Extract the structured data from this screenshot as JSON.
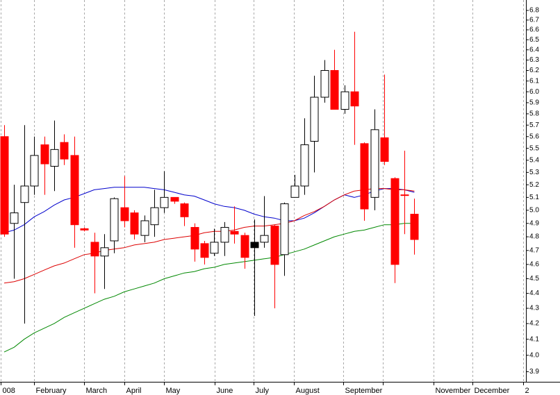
{
  "chart_data": {
    "type": "candlestick",
    "log_scale": true,
    "grid": true,
    "up_color": "#ffffff",
    "down_color": "#ff0000",
    "ylim": [
      3.84,
      6.91
    ],
    "yticks": [
      3.9,
      {
        "value": 4,
        "label": "4.0"
      },
      4.1,
      4.2,
      4.3,
      4.4,
      4.5,
      4.6,
      4.7,
      4.8,
      4.9,
      {
        "value": 5,
        "label": "5.0"
      },
      5.1,
      5.2,
      5.3,
      5.4,
      5.5,
      5.6,
      5.7,
      5.8,
      5.9,
      {
        "value": 6,
        "label": "6.0"
      },
      6.1,
      6.2,
      6.3,
      6.4,
      6.5,
      6.6,
      6.7,
      6.8
    ],
    "xlim": [
      -0.42,
      52.15
    ],
    "xticks": [
      {
        "value": -0.35,
        "label": "008"
      },
      {
        "value": 2.99,
        "label": "February"
      },
      {
        "value": 7.99,
        "label": "March"
      },
      {
        "value": 12.01,
        "label": "April"
      },
      {
        "value": 15.97,
        "label": "May"
      },
      {
        "value": 21.04,
        "label": "June"
      },
      {
        "value": 24.93,
        "label": "July"
      },
      {
        "value": 28.96,
        "label": "August"
      },
      {
        "value": 33.89,
        "label": "September"
      },
      {
        "value": 37.85,
        "label": null
      },
      {
        "value": 42.92,
        "label": "November"
      },
      {
        "value": 46.8,
        "label": "December"
      },
      {
        "value": 51.9,
        "label": "2"
      }
    ],
    "open": [
      5.6,
      4.9,
      5.06,
      5.19,
      5.53,
      5.35,
      5.55,
      5.44,
      4.86,
      4.76,
      4.66,
      4.77,
      5.02,
      4.98,
      4.81,
      4.89,
      5.02,
      5.1,
      5.05,
      4.87,
      4.75,
      4.68,
      4.76,
      4.84,
      4.81,
      4.76,
      4.76,
      4.88,
      4.67,
      5.1,
      5.19,
      5.56,
      5.95,
      6.2,
      5.84,
      6.0,
      5.54,
      5.1,
      5.59,
      5.25,
      5.12,
      4.97
    ],
    "high": [
      5.7,
      5.2,
      5.7,
      5.6,
      5.6,
      5.74,
      5.62,
      5.6,
      4.87,
      4.83,
      4.82,
      5.1,
      5.27,
      5.0,
      4.96,
      5.16,
      5.31,
      5.1,
      5.06,
      4.9,
      4.77,
      4.86,
      4.91,
      5.03,
      4.83,
      4.93,
      5.11,
      4.89,
      5.06,
      5.28,
      5.76,
      6.15,
      6.3,
      6.4,
      6.06,
      6.58,
      5.55,
      5.84,
      6.16,
      5.26,
      5.48,
      5.09
    ],
    "low": [
      4.8,
      4.5,
      4.2,
      5.12,
      5.12,
      5.15,
      5.36,
      4.72,
      4.84,
      4.4,
      4.43,
      4.68,
      4.87,
      4.78,
      4.76,
      4.8,
      4.98,
      5.05,
      4.88,
      4.62,
      4.6,
      4.66,
      4.66,
      4.75,
      4.57,
      4.25,
      4.72,
      4.3,
      4.52,
      5.1,
      5.12,
      5.3,
      5.9,
      5.84,
      5.8,
      5.53,
      4.92,
      5.0,
      5.36,
      4.47,
      4.82,
      4.67
    ],
    "close": [
      4.82,
      4.98,
      5.19,
      5.44,
      5.37,
      5.49,
      5.41,
      4.89,
      4.85,
      4.66,
      4.72,
      5.09,
      4.92,
      4.82,
      4.92,
      5.02,
      5.1,
      5.07,
      4.95,
      4.71,
      4.65,
      4.76,
      4.87,
      4.82,
      4.65,
      4.72,
      4.81,
      4.6,
      5.05,
      5.19,
      5.53,
      5.95,
      6.2,
      5.84,
      6.0,
      5.87,
      5.01,
      5.66,
      5.39,
      4.6,
      5.12,
      4.78
    ],
    "colors": [
      "#ff0000",
      "#ffffff",
      "#ffffff",
      "#ffffff",
      "#ff0000",
      "#ffffff",
      "#ff0000",
      "#ff0000",
      "#ff0000",
      "#ff0000",
      "#ffffff",
      "#ffffff",
      "#ff0000",
      "#ff0000",
      "#ffffff",
      "#ffffff",
      "#ffffff",
      "#ff0000",
      "#ff0000",
      "#ff0000",
      "#ff0000",
      "#ffffff",
      "#ffffff",
      "#ff0000",
      "#ff0000",
      "#000000",
      "#ffffff",
      "#ff0000",
      "#ffffff",
      "#ffffff",
      "#ffffff",
      "#ffffff",
      "#ffffff",
      "#ff0000",
      "#ffffff",
      "#ff0000",
      "#ff0000",
      "#ffffff",
      "#ff0000",
      "#ff0000",
      "#ff0000",
      "#ff0000"
    ],
    "lines": [
      {
        "color": "#0000cc",
        "values": [
          4.83,
          4.85,
          4.89,
          4.95,
          4.99,
          5.04,
          5.08,
          5.1,
          5.13,
          5.16,
          5.17,
          5.18,
          5.18,
          5.18,
          5.18,
          5.17,
          5.16,
          5.14,
          5.12,
          5.11,
          5.08,
          5.05,
          5.03,
          5.02,
          5.0,
          4.97,
          4.95,
          4.94,
          4.92,
          4.92,
          4.94,
          4.98,
          5.03,
          5.08,
          5.12,
          5.1,
          5.12,
          5.15,
          5.17,
          5.17,
          5.16,
          5.14
        ]
      },
      {
        "color": "#dd0000",
        "values": [
          4.47,
          4.48,
          4.5,
          4.53,
          4.56,
          4.59,
          4.61,
          4.64,
          4.67,
          4.68,
          4.7,
          4.71,
          4.72,
          4.74,
          4.75,
          4.76,
          4.78,
          4.79,
          4.8,
          4.81,
          4.83,
          4.84,
          4.84,
          4.85,
          4.87,
          4.88,
          4.88,
          4.89,
          4.9,
          4.92,
          4.96,
          4.99,
          5.03,
          5.08,
          5.12,
          5.15,
          5.16,
          5.17,
          5.17,
          5.16,
          5.16,
          5.15
        ]
      },
      {
        "color": "#008800",
        "values": [
          4.02,
          4.05,
          4.1,
          4.14,
          4.17,
          4.2,
          4.24,
          4.27,
          4.3,
          4.33,
          4.36,
          4.38,
          4.41,
          4.43,
          4.45,
          4.47,
          4.5,
          4.52,
          4.54,
          4.55,
          4.57,
          4.58,
          4.6,
          4.61,
          4.62,
          4.63,
          4.64,
          4.65,
          4.67,
          4.69,
          4.71,
          4.74,
          4.77,
          4.8,
          4.82,
          4.84,
          4.85,
          4.87,
          4.89,
          4.89,
          4.9,
          4.9
        ]
      }
    ]
  }
}
